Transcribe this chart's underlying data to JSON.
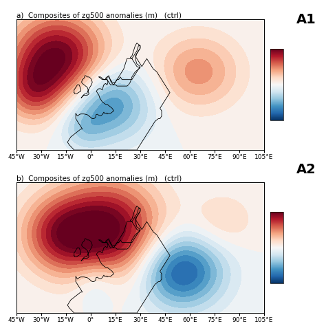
{
  "title_a": "a)  Composites of zg500 anomalies (m)   (ctrl)",
  "title_b": "b)  Composites of zg500 anomalies (m)   (ctrl)",
  "label_a": "A1",
  "label_b": "A2",
  "lon_min": -45,
  "lon_max": 105,
  "lat_min": 30,
  "lat_max": 80,
  "lon_ticks": [
    -45,
    -30,
    -15,
    0,
    15,
    30,
    45,
    60,
    75,
    90,
    105
  ],
  "lon_labels": [
    "45°W",
    "30°W",
    "15°W",
    "0°",
    "15°E",
    "30°E",
    "45°E",
    "60°E",
    "75°E",
    "90°E",
    "105°E"
  ],
  "vmin": -200,
  "vmax": 200,
  "cmap": "RdBu_r",
  "background_color": "#ffffff",
  "centers_a": [
    [
      -20,
      65,
      210,
      20,
      12
    ],
    [
      -35,
      52,
      90,
      12,
      8
    ],
    [
      10,
      48,
      -130,
      18,
      10
    ],
    [
      65,
      60,
      90,
      18,
      10
    ],
    [
      -5,
      38,
      -40,
      10,
      6
    ]
  ],
  "centers_b": [
    [
      10,
      62,
      210,
      22,
      13
    ],
    [
      -20,
      60,
      120,
      16,
      10
    ],
    [
      55,
      46,
      -170,
      18,
      10
    ],
    [
      3,
      42,
      -50,
      10,
      7
    ],
    [
      80,
      65,
      40,
      14,
      8
    ]
  ],
  "coastline_color": "black",
  "coastline_lw": 0.6,
  "tick_fontsize": 6.5,
  "title_fontsize": 7.5,
  "label_fontsize": 14
}
